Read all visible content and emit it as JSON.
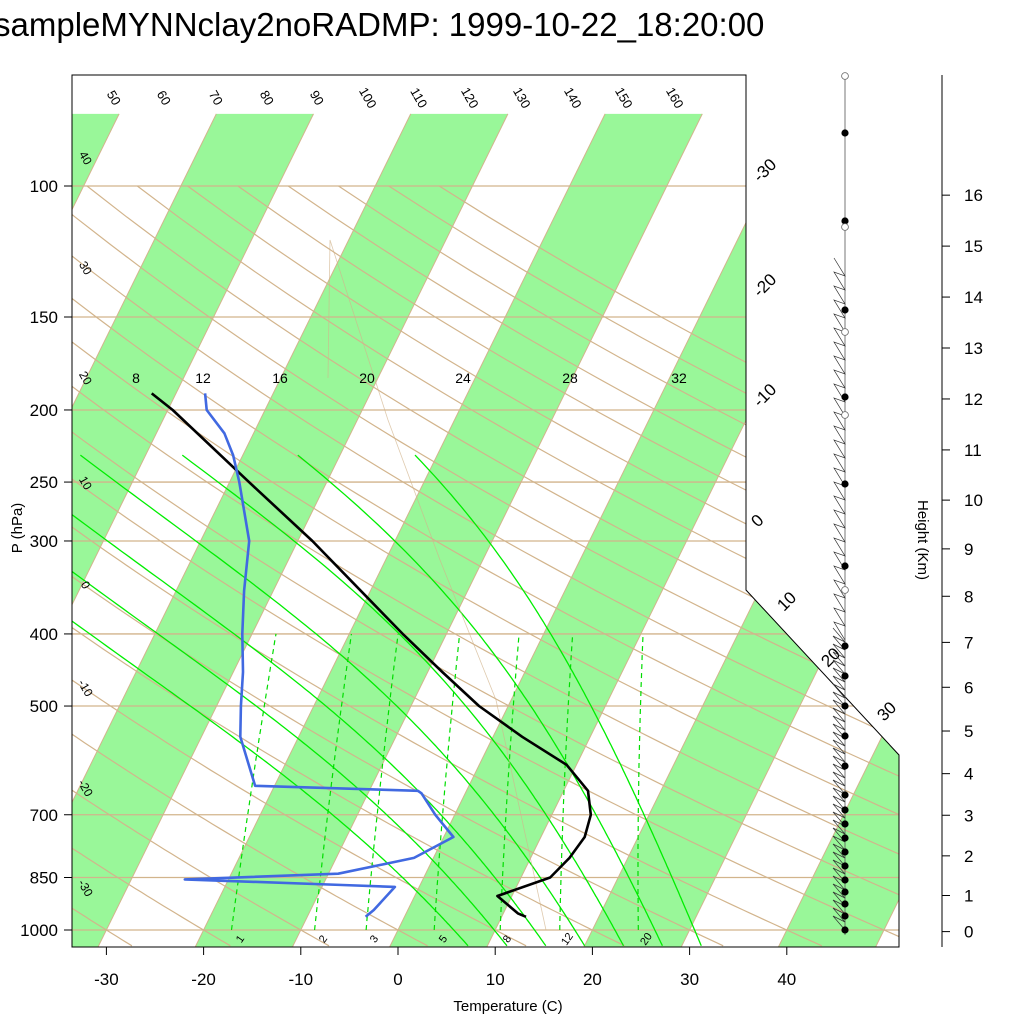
{
  "title": "sampleMYNNclay2noRADMP: 1999-10-22_18:20:00",
  "colors": {
    "isotherm_band": "#99f799",
    "dry_adiabat": "#d2b48c",
    "moist_adiabat": "#00ee00",
    "mixing_ratio": "#00dd00",
    "temperature": "#000000",
    "dewpoint": "#4169e1",
    "grid": "#d2b48c"
  },
  "chart_data": {
    "type": "skewT",
    "xlabel": "Temperature (C)",
    "ylabel": "P (hPa)",
    "y2label": "Height (Km)",
    "x_ticks": [
      "-30",
      "-20",
      "-10",
      "0",
      "10",
      "20",
      "30",
      "40"
    ],
    "pressure_ticks": [
      "100",
      "150",
      "200",
      "250",
      "300",
      "400",
      "500",
      "700",
      "850",
      "1000"
    ],
    "height_ticks": [
      "0",
      "1",
      "2",
      "3",
      "4",
      "5",
      "6",
      "7",
      "8",
      "9",
      "10",
      "11",
      "12",
      "13",
      "14",
      "15",
      "16"
    ],
    "ylim_hpa": [
      1000,
      100
    ],
    "xlim_c": [
      -34,
      44
    ],
    "dry_adiabat_labels_top": [
      "50",
      "60",
      "70",
      "80",
      "90",
      "100",
      "110",
      "120",
      "130",
      "140",
      "150",
      "160"
    ],
    "dry_adiabat_labels_left": [
      "40",
      "30",
      "20",
      "10",
      "0",
      "-10",
      "-20",
      "-30"
    ],
    "isotherm_labels_right": [
      "-30",
      "-20",
      "-10",
      "0",
      "10",
      "20",
      "30"
    ],
    "moist_adiabat_labels": [
      "8",
      "12",
      "16",
      "20",
      "24",
      "28",
      "32"
    ],
    "mixing_ratio_labels": [
      "1",
      "2",
      "3",
      "5",
      "8",
      "12",
      "20"
    ],
    "temperature_profile": [
      {
        "p": 960,
        "t": 12.5
      },
      {
        "p": 950,
        "t": 11.5
      },
      {
        "p": 900,
        "t": 8.5
      },
      {
        "p": 850,
        "t": 13.0
      },
      {
        "p": 800,
        "t": 14.0
      },
      {
        "p": 750,
        "t": 14.5
      },
      {
        "p": 700,
        "t": 14.0
      },
      {
        "p": 650,
        "t": 12.5
      },
      {
        "p": 600,
        "t": 9.0
      },
      {
        "p": 550,
        "t": 3.0
      },
      {
        "p": 500,
        "t": -3.0
      },
      {
        "p": 450,
        "t": -8.5
      },
      {
        "p": 400,
        "t": -14.5
      },
      {
        "p": 350,
        "t": -21.0
      },
      {
        "p": 300,
        "t": -28.5
      },
      {
        "p": 250,
        "t": -38.0
      },
      {
        "p": 200,
        "t": -49.5
      },
      {
        "p": 190,
        "t": -52.5
      }
    ],
    "dewpoint_profile": [
      {
        "p": 960,
        "t": -4.0
      },
      {
        "p": 940,
        "t": -3.5
      },
      {
        "p": 875,
        "t": -2.5
      },
      {
        "p": 870,
        "t": -8.0
      },
      {
        "p": 855,
        "t": -24.5
      },
      {
        "p": 840,
        "t": -9.0
      },
      {
        "p": 800,
        "t": -2.0
      },
      {
        "p": 750,
        "t": 1.0
      },
      {
        "p": 700,
        "t": -2.0
      },
      {
        "p": 655,
        "t": -4.5
      },
      {
        "p": 650,
        "t": -5.0
      },
      {
        "p": 640,
        "t": -22.0
      },
      {
        "p": 550,
        "t": -26.0
      },
      {
        "p": 500,
        "t": -27.5
      },
      {
        "p": 450,
        "t": -29.0
      },
      {
        "p": 400,
        "t": -31.0
      },
      {
        "p": 350,
        "t": -33.0
      },
      {
        "p": 300,
        "t": -35.0
      },
      {
        "p": 250,
        "t": -39.0
      },
      {
        "p": 230,
        "t": -41.0
      },
      {
        "p": 215,
        "t": -43.0
      },
      {
        "p": 200,
        "t": -46.0
      },
      {
        "p": 190,
        "t": -47.0
      }
    ]
  }
}
